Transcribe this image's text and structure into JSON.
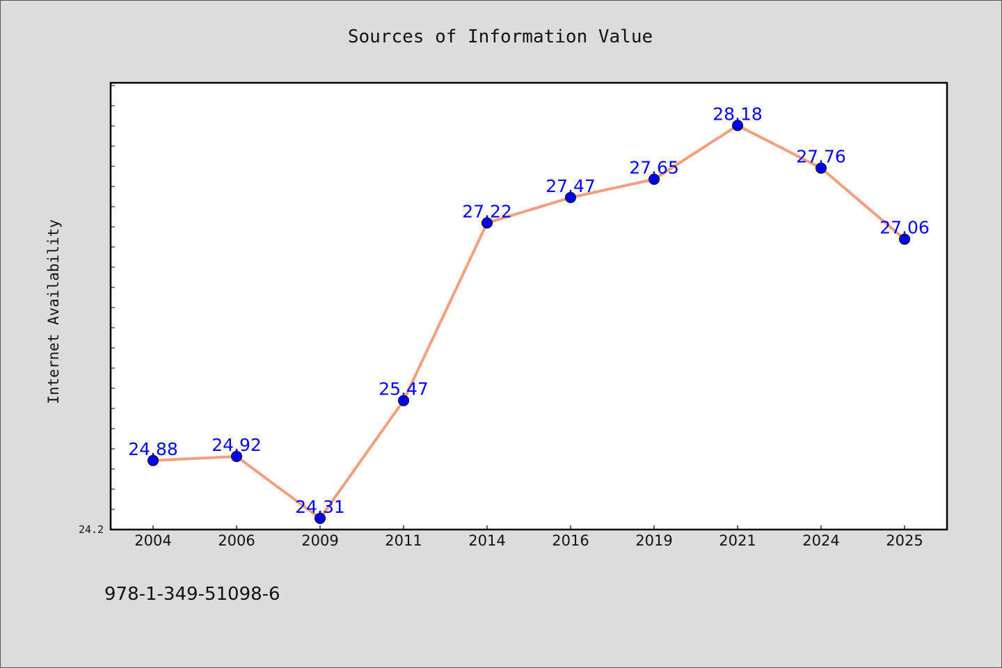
{
  "chart_data": {
    "type": "line",
    "title": "Sources of Information Value",
    "xlabel": "",
    "ylabel": "Internet Availability",
    "categories": [
      "2004",
      "2006",
      "2009",
      "2011",
      "2014",
      "2016",
      "2019",
      "2021",
      "2024",
      "2025"
    ],
    "series": [
      {
        "values": [
          24.88,
          24.92,
          24.31,
          25.47,
          27.22,
          27.47,
          27.65,
          28.18,
          27.76,
          27.06
        ],
        "data_labels": [
          "24.88",
          "24.92",
          "24.31",
          "25.47",
          "27.22",
          "27.47",
          "27.65",
          "28.18",
          "27.76",
          "27.06"
        ],
        "line_color": "#f4a07e",
        "marker_color": "#0000ee"
      }
    ],
    "ylim": [
      24.2,
      28.6
    ],
    "ytick_labels": [
      "24.2"
    ],
    "grid": false,
    "legend": "none"
  },
  "footer": {
    "isbn": "978-1-349-51098-6"
  },
  "colors": {
    "background": "#dcdcdc",
    "plot_background": "#ffffff",
    "data_label": "#0000ff"
  }
}
